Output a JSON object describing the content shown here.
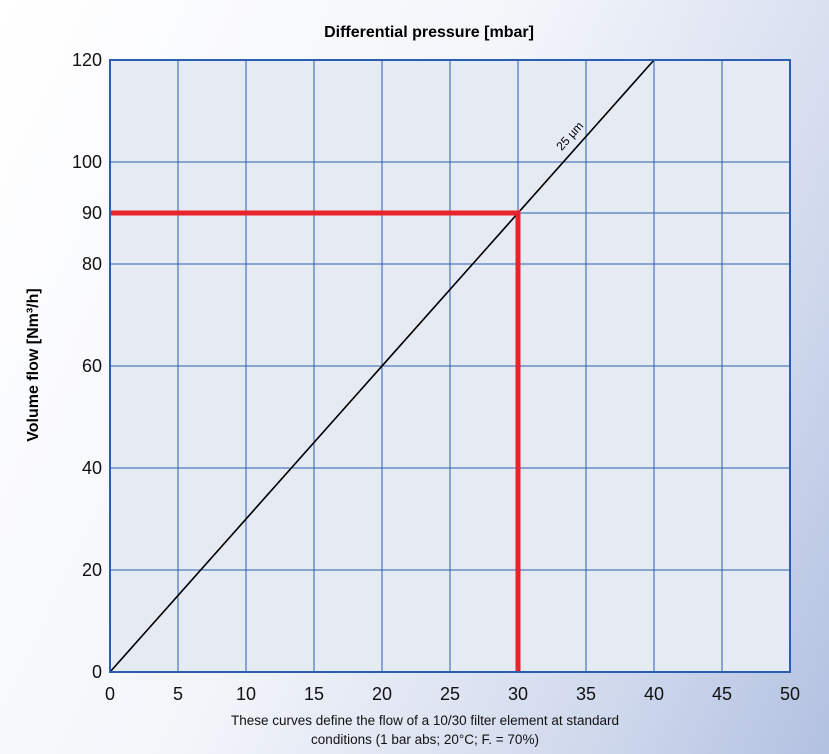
{
  "chart_data": {
    "type": "line",
    "title": "Differential pressure [mbar]",
    "xlabel": "",
    "ylabel": "Volume flow [Nm³/h]",
    "xlim": [
      0,
      50
    ],
    "ylim": [
      0,
      120
    ],
    "x_ticks": [
      0,
      5,
      10,
      15,
      20,
      25,
      30,
      35,
      40,
      45,
      50
    ],
    "y_ticks": [
      0,
      20,
      40,
      60,
      80,
      90,
      100,
      120
    ],
    "grid": true,
    "series": [
      {
        "name": "25 µm",
        "x": [
          0,
          40
        ],
        "y": [
          0,
          120
        ],
        "color": "#000000"
      }
    ],
    "reference_lines": [
      {
        "x": [
          0,
          30,
          30
        ],
        "y": [
          90,
          90,
          0
        ],
        "color": "#e8232a"
      }
    ],
    "footnote": [
      "These curves define the flow of a 10/30 filter element at standard",
      "conditions (1 bar abs; 20°C; F. = 70%)"
    ],
    "colors": {
      "plot_fill": "#e6eaf3",
      "grid": "#2a5fb0",
      "frame": "#2a5fb0",
      "marker": "#e8232a"
    }
  }
}
